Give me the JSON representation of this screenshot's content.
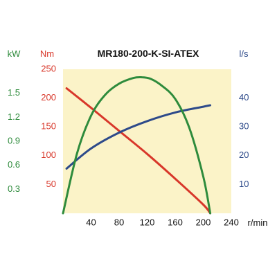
{
  "chart_data": {
    "type": "line",
    "title": "MR180-200-K-SI-ATEX",
    "x_unit": "r/min",
    "x_ticks": [
      "40",
      "80",
      "120",
      "160",
      "200",
      "240"
    ],
    "xlim": [
      0,
      240
    ],
    "axes": {
      "power": {
        "unit": "kW",
        "color": "#2e8b3c",
        "ticks": [
          "1.5",
          "1.2",
          "0.9",
          "0.6",
          "0.3"
        ],
        "ylim": [
          0,
          1.8
        ]
      },
      "torque": {
        "unit": "Nm",
        "color": "#d8372a",
        "ticks": [
          "250",
          "200",
          "150",
          "100",
          "50"
        ],
        "ylim": [
          0,
          250
        ]
      },
      "flow": {
        "unit": "l/s",
        "color": "#2d4a8a",
        "ticks": [
          "40",
          "30",
          "20",
          "10"
        ],
        "ylim": [
          0,
          50
        ]
      }
    },
    "grid": false,
    "background": "#fbf3c8",
    "series": [
      {
        "axis": "torque",
        "color": "#d8372a",
        "x": [
          5,
          40,
          80,
          120,
          160,
          200,
          210
        ],
        "y": [
          217,
          183,
          143,
          103,
          60,
          15,
          0
        ]
      },
      {
        "axis": "flow",
        "color": "#2d4a8a",
        "x": [
          5,
          40,
          80,
          120,
          160,
          200,
          210
        ],
        "y": [
          15.5,
          22.5,
          28,
          32,
          35,
          37,
          37.5
        ]
      },
      {
        "axis": "power",
        "color": "#2e8b3c",
        "x": [
          0,
          20,
          40,
          60,
          80,
          100,
          113,
          125,
          140,
          160,
          180,
          200,
          210
        ],
        "y": [
          0,
          0.75,
          1.22,
          1.48,
          1.62,
          1.69,
          1.7,
          1.68,
          1.6,
          1.43,
          1.07,
          0.46,
          0
        ]
      }
    ]
  }
}
